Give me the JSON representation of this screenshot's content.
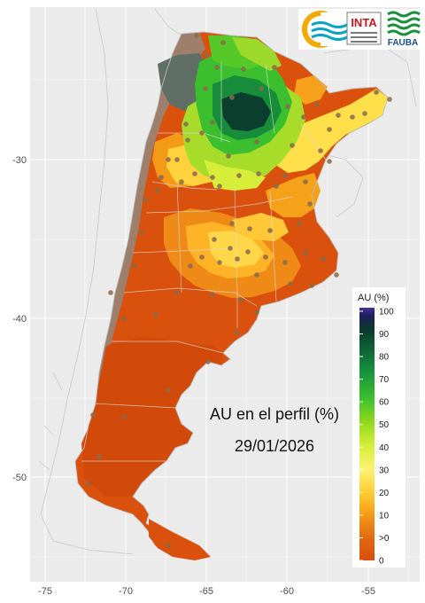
{
  "map": {
    "title": "AU en el perfil (%)",
    "date": "29/01/2026",
    "x_ticks": [
      "-75",
      "-70",
      "-65",
      "-60",
      "-55"
    ],
    "x_tick_values": [
      -75,
      -70,
      -65,
      -60,
      -55
    ],
    "y_ticks": [
      "-30",
      "-40",
      "-50"
    ],
    "y_tick_values": [
      -30,
      -40,
      -50
    ],
    "lon_range": [
      -77,
      -52.8
    ],
    "lat_range": [
      -56,
      -20.2
    ],
    "background_color": "#ebebeb",
    "gridline_color": "#ffffff"
  },
  "legend": {
    "title": "AU (%)",
    "labels": [
      "100",
      "90",
      "80",
      "70",
      "60",
      "50",
      "40",
      "30",
      "20",
      "10",
      ">0",
      "0"
    ],
    "colors": [
      "#4b2fa3",
      "#0b3b2c",
      "#0f6b3a",
      "#1b9a3d",
      "#3fbf2f",
      "#8fd81c",
      "#d8ef3b",
      "#fff176",
      "#ffcf33",
      "#f59a16",
      "#e06a12",
      "#d84e0c"
    ]
  },
  "logos": {
    "inta_text": "INTA",
    "fauba_text": "FAUBA"
  }
}
